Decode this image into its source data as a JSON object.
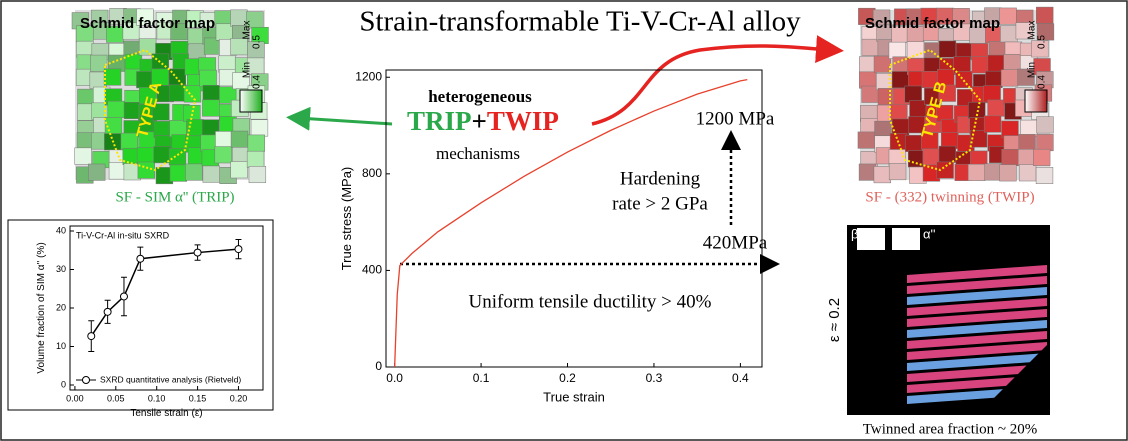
{
  "title": "Strain-transformable Ti-V-Cr-Al alloy",
  "chart_data": [
    {
      "type": "line",
      "xlabel": "True strain",
      "ylabel": "True stress (MPa)",
      "x": [
        0,
        0.003,
        0.006,
        0.02,
        0.05,
        0.1,
        0.15,
        0.2,
        0.25,
        0.3,
        0.35,
        0.4,
        0.408
      ],
      "values": [
        0,
        300,
        420,
        470,
        560,
        680,
        790,
        890,
        980,
        1060,
        1130,
        1185,
        1190
      ],
      "color": "#e8412c",
      "xlim": [
        -0.01,
        0.425
      ],
      "ylim": [
        0,
        1230
      ],
      "xticks": [
        {
          "value": 0,
          "label": "0.0"
        },
        0.1,
        0.2,
        0.3,
        0.4
      ],
      "yticks": [
        0,
        400,
        800,
        1200
      ],
      "annotations": [
        "heterogeneous",
        "TRIP",
        "+",
        "TWIP",
        "mechanisms",
        "1200 MPa",
        "Hardening",
        "rate > 2 GPa",
        "420MPa",
        "Uniform tensile ductility > 40%"
      ]
    },
    {
      "type": "errorline",
      "title": "Ti-V-Cr-Al in-situ SXRD",
      "xlabel": "Tensile strain (ε)",
      "ylabel": "Volume fraction of SIM α'' (%)",
      "x": [
        0.02,
        0.04,
        0.06,
        0.08,
        0.15,
        0.2
      ],
      "values": [
        12.7,
        19,
        23,
        32.8,
        34.4,
        35.3
      ],
      "errors": [
        4,
        3,
        5,
        3,
        2,
        2.5
      ],
      "color": "#000000",
      "legend": "SXRD quantitative analysis (Rietveld)",
      "xlim": [
        -0.006,
        0.23
      ],
      "ylim": [
        -1.3,
        41.3
      ],
      "xticks": [
        {
          "value": 0,
          "label": "0.00"
        },
        {
          "value": 0.05,
          "label": "0.05"
        },
        {
          "value": 0.1,
          "label": "0.10"
        },
        {
          "value": 0.15,
          "label": "0.15"
        },
        {
          "value": 0.2,
          "label": "0.20"
        }
      ],
      "yticks": [
        0,
        10,
        20,
        30,
        40
      ]
    }
  ],
  "panels": {
    "map_a": {
      "title": "Schmid factor map",
      "max": "Max",
      "max_value": "0.5",
      "min": "Min",
      "min_value": "0.4",
      "type": "TYPE A",
      "caption": "SF - SIM α'' (TRIP)"
    },
    "map_b": {
      "title": "Schmid factor map",
      "max": "Max",
      "max_value": "0.5",
      "min": "Min",
      "min_value": "0.4",
      "type": "TYPE B",
      "caption": "SF - (332) twinning (TWIP)"
    },
    "ebsd": {
      "beta": "β",
      "alpha": "α''",
      "strain": "ε ≈ 0.2",
      "caption": "Twinned area fraction ~ 20%"
    }
  }
}
